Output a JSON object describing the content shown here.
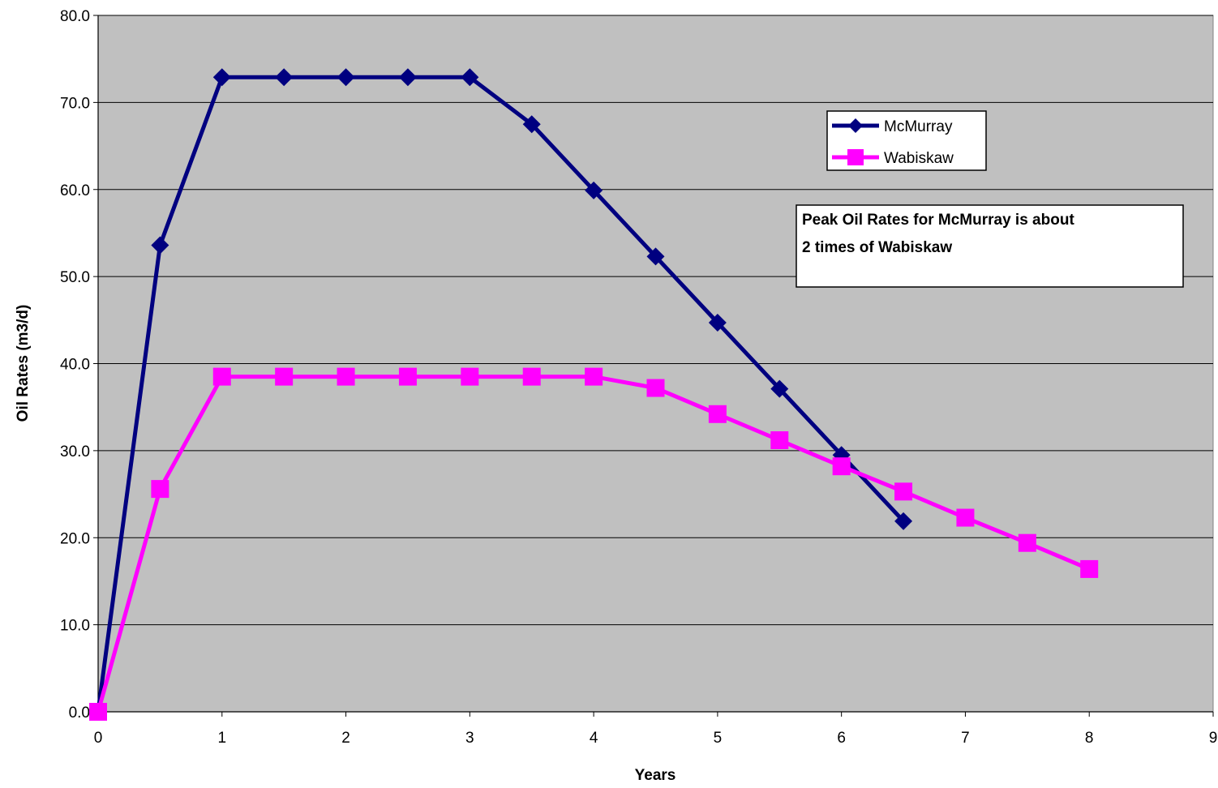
{
  "chart_data": {
    "type": "line",
    "title": "",
    "xlabel": "Years",
    "ylabel": "Oil Rates (m3/d)",
    "xlim": [
      0,
      9
    ],
    "ylim": [
      0,
      80
    ],
    "x_ticks": [
      0,
      1,
      2,
      3,
      4,
      5,
      6,
      7,
      8,
      9
    ],
    "x_tick_labels": [
      "0",
      "1",
      "2",
      "3",
      "4",
      "5",
      "6",
      "7",
      "8",
      "9"
    ],
    "y_ticks": [
      0,
      10,
      20,
      30,
      40,
      50,
      60,
      70,
      80
    ],
    "y_tick_labels": [
      "0.0",
      "10.0",
      "20.0",
      "30.0",
      "40.0",
      "50.0",
      "60.0",
      "70.0",
      "80.0"
    ],
    "grid": "horizontal",
    "plot_background": "#c0c0c0",
    "legend_position": "top-right",
    "series": [
      {
        "name": "McMurray",
        "color": "#000080",
        "marker": "diamond",
        "x": [
          0,
          0.5,
          1,
          1.5,
          2,
          2.5,
          3,
          3.5,
          4,
          4.5,
          5,
          5.5,
          6,
          6.5
        ],
        "values": [
          0.0,
          53.6,
          72.9,
          72.9,
          72.9,
          72.9,
          72.9,
          67.5,
          59.9,
          52.3,
          44.7,
          37.1,
          29.5,
          21.9
        ]
      },
      {
        "name": "Wabiskaw",
        "color": "#ff00ff",
        "marker": "square",
        "x": [
          0,
          0.5,
          1,
          1.5,
          2,
          2.5,
          3,
          3.5,
          4,
          4.5,
          5,
          5.5,
          6,
          6.5,
          7,
          7.5,
          8
        ],
        "values": [
          0.0,
          25.6,
          38.5,
          38.5,
          38.5,
          38.5,
          38.5,
          38.5,
          38.5,
          37.2,
          34.2,
          31.2,
          28.2,
          25.3,
          22.3,
          19.4,
          16.4
        ]
      }
    ],
    "annotation_lines": [
      "Peak Oil Rates for McMurray is about",
      "2 times of Wabiskaw"
    ]
  }
}
